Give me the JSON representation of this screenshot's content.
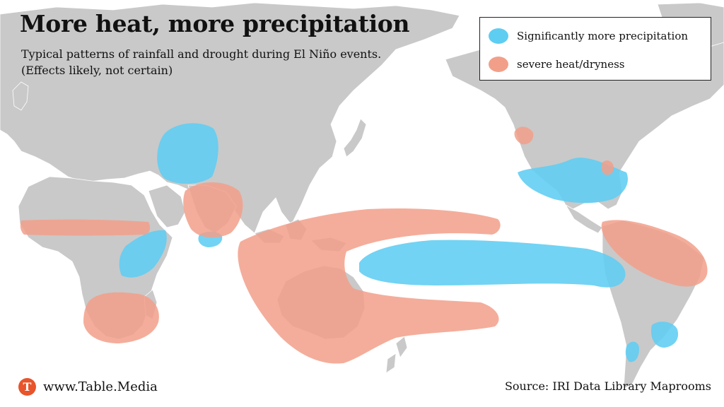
{
  "header": {
    "title": "More heat, more precipitation",
    "subtitle_line1": "Typical patterns of rainfall and drought during El Niño events.",
    "subtitle_line2": "(Effects likely, not certain)"
  },
  "legend": {
    "items": [
      {
        "label": "Significantly more precipitation",
        "color": "#5ecdf2"
      },
      {
        "label": "severe heat/dryness",
        "color": "#f29f8a"
      }
    ]
  },
  "footer": {
    "brand_letter": "T",
    "brand": "www.Table.Media",
    "brand_color": "#e8542b",
    "source": "Source: IRI Data Library Maprooms"
  },
  "map": {
    "land_color": "#c9c9c9",
    "border_color": "#ffffff",
    "wet_color": "#5ecdf2",
    "dry_color": "#f29f8a"
  }
}
